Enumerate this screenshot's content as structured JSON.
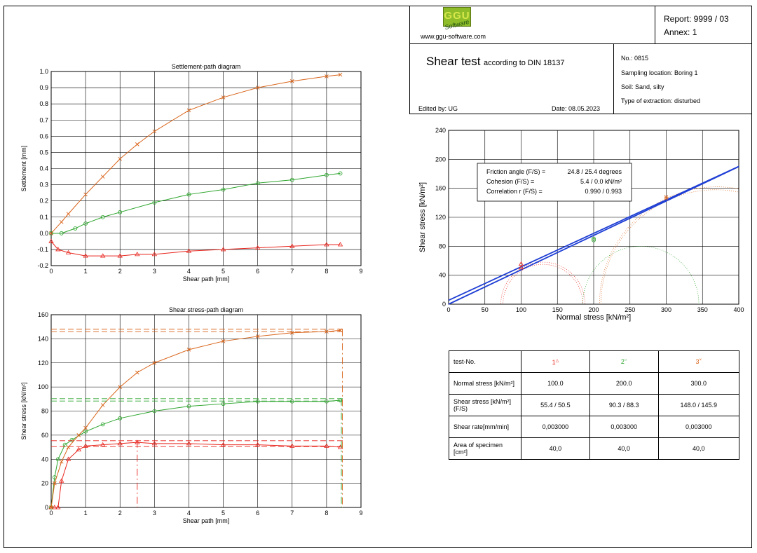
{
  "header": {
    "website": "www.ggu-software.com",
    "logo_main": "GGU",
    "logo_sub": "Software",
    "report": "Report: 9999 / 03",
    "annex": "Annex: 1",
    "title_main": "Shear test",
    "title_sub": "according to DIN 18137",
    "edited_by": "Edited by:  UG",
    "date": "Date:  08.05.2023",
    "no": "No.:  0815",
    "sampling_location": "Sampling location:  Boring 1",
    "soil": "Soil:  Sand, silty",
    "extraction": "Type of extraction:  disturbed"
  },
  "colors": {
    "test1": "#e8241c",
    "test2": "#2da52d",
    "test3": "#d9651b",
    "regression": "#1f3fd4",
    "grid": "#000000"
  },
  "results_box": {
    "rows": [
      {
        "label": "Friction angle (F/S) =",
        "value": "24.8 /  25.4 degrees"
      },
      {
        "label": "Cohesion (F/S) =",
        "value": "5.4 /  0.0 kN/m²"
      },
      {
        "label": "Correlation r (F/S) =",
        "value": "0.990 / 0.993"
      }
    ]
  },
  "table": {
    "headers": [
      "test-No.",
      "1",
      "2",
      "3"
    ],
    "markers": [
      "△",
      "○",
      "×"
    ],
    "rows": [
      {
        "label": "Normal stress [kN/m²]",
        "values": [
          "100.0",
          "200.0",
          "300.0"
        ]
      },
      {
        "label": "Shear stress [kN/m²](F/S)",
        "values": [
          "55.4 / 50.5",
          "90.3 / 88.3",
          "148.0 / 145.9"
        ]
      },
      {
        "label": "Shear rate[mm/min]",
        "values": [
          "0,003000",
          "0,003000",
          "0,003000"
        ]
      },
      {
        "label": "Area of specimen [cm²]",
        "values": [
          "40,0",
          "40,0",
          "40,0"
        ]
      }
    ]
  },
  "chart_data": [
    {
      "type": "line",
      "title": "Settlement-path diagram",
      "xlabel": "Shear path [mm]",
      "ylabel": "Settlement [mm]",
      "xlim": [
        0,
        9
      ],
      "ylim": [
        -0.2,
        1.0
      ],
      "xticks": [
        "0",
        "1",
        "2",
        "3",
        "4",
        "5",
        "6",
        "7",
        "8",
        "9"
      ],
      "yticks": [
        "-0.2",
        "-0.1",
        "0.0",
        "0.1",
        "0.2",
        "0.3",
        "0.4",
        "0.5",
        "0.6",
        "0.7",
        "0.8",
        "0.9",
        "1.0"
      ],
      "grid": true,
      "series": [
        {
          "marker": "△",
          "color": "#e8241c",
          "x": [
            0,
            0.2,
            0.5,
            1.0,
            1.5,
            2.0,
            2.5,
            3.0,
            4.0,
            5.0,
            6.0,
            7.0,
            8.0,
            8.4
          ],
          "y": [
            -0.05,
            -0.1,
            -0.12,
            -0.14,
            -0.14,
            -0.14,
            -0.13,
            -0.13,
            -0.11,
            -0.1,
            -0.09,
            -0.08,
            -0.07,
            -0.07
          ]
        },
        {
          "marker": "○",
          "color": "#2da52d",
          "x": [
            0,
            0.3,
            0.7,
            1.0,
            1.5,
            2.0,
            3.0,
            4.0,
            5.0,
            6.0,
            7.0,
            8.0,
            8.4
          ],
          "y": [
            0,
            0.0,
            0.03,
            0.06,
            0.1,
            0.13,
            0.19,
            0.24,
            0.27,
            0.31,
            0.33,
            0.36,
            0.37
          ]
        },
        {
          "marker": "×",
          "color": "#d9651b",
          "x": [
            0,
            0.3,
            0.5,
            1.0,
            1.5,
            2.0,
            2.5,
            3.0,
            4.0,
            5.0,
            6.0,
            7.0,
            8.0,
            8.4
          ],
          "y": [
            0,
            0.07,
            0.12,
            0.24,
            0.35,
            0.46,
            0.55,
            0.63,
            0.76,
            0.84,
            0.9,
            0.94,
            0.97,
            0.98
          ]
        }
      ]
    },
    {
      "type": "line",
      "title": "Shear stress-path diagram",
      "xlabel": "Shear path [mm]",
      "ylabel": "Shear stress [kN/m²]",
      "xlim": [
        0,
        9
      ],
      "ylim": [
        0,
        160
      ],
      "xticks": [
        "0",
        "1",
        "2",
        "3",
        "4",
        "5",
        "6",
        "7",
        "8",
        "9"
      ],
      "yticks": [
        "0",
        "20",
        "40",
        "60",
        "80",
        "100",
        "120",
        "140",
        "160"
      ],
      "grid": true,
      "peak_lines": [
        55.4,
        90.3,
        148.0
      ],
      "final_lines": [
        50.5,
        88.3,
        145.9
      ],
      "peak_x": [
        2.5,
        8.4,
        8.4
      ],
      "series": [
        {
          "marker": "△",
          "color": "#e8241c",
          "x": [
            0,
            0.1,
            0.2,
            0.3,
            0.5,
            0.8,
            1.0,
            1.5,
            2.0,
            2.5,
            3.0,
            4.0,
            5.0,
            6.0,
            7.0,
            8.0,
            8.4
          ],
          "y": [
            0,
            0,
            0,
            22,
            40,
            48,
            51,
            52,
            53,
            54,
            53,
            53,
            52,
            52,
            51,
            51,
            50
          ]
        },
        {
          "marker": "○",
          "color": "#2da52d",
          "x": [
            0,
            0.1,
            0.2,
            0.4,
            0.6,
            1.0,
            1.5,
            2.0,
            3.0,
            4.0,
            5.0,
            6.0,
            7.0,
            8.0,
            8.4
          ],
          "y": [
            0,
            25,
            40,
            52,
            56,
            63,
            69,
            74,
            80,
            84,
            86,
            88,
            88,
            88,
            89
          ]
        },
        {
          "marker": "×",
          "color": "#d9651b",
          "x": [
            0,
            0.1,
            0.3,
            0.5,
            0.8,
            1.0,
            1.5,
            2.0,
            2.5,
            3.0,
            4.0,
            5.0,
            6.0,
            7.0,
            8.0,
            8.4
          ],
          "y": [
            0,
            20,
            38,
            50,
            60,
            66,
            85,
            100,
            112,
            120,
            131,
            138,
            142,
            145,
            146,
            147
          ]
        }
      ]
    },
    {
      "type": "scatter",
      "title": "",
      "xlabel": "Normal stress [kN/m²]",
      "ylabel": "Shear stress [kN/m²]",
      "xlim": [
        0,
        400
      ],
      "ylim": [
        0,
        240
      ],
      "xticks": [
        "0",
        "50",
        "100",
        "150",
        "200",
        "250",
        "300",
        "350",
        "400"
      ],
      "yticks": [
        "0",
        "40",
        "80",
        "120",
        "160",
        "200",
        "240"
      ],
      "grid": true,
      "points": [
        {
          "marker": "△",
          "color": "#e8241c",
          "x": 100,
          "y": 55.4
        },
        {
          "marker": "△",
          "color": "#e8241c",
          "x": 100,
          "y": 50.5
        },
        {
          "marker": "○",
          "color": "#2da52d",
          "x": 200,
          "y": 90.3
        },
        {
          "marker": "○",
          "color": "#2da52d",
          "x": 200,
          "y": 88.3
        },
        {
          "marker": "×",
          "color": "#d9651b",
          "x": 300,
          "y": 148.0
        },
        {
          "marker": "×",
          "color": "#d9651b",
          "x": 300,
          "y": 145.9
        }
      ],
      "regression_lines": [
        {
          "phi_deg": 24.8,
          "c": 5.4
        },
        {
          "phi_deg": 25.4,
          "c": 0.0
        }
      ],
      "mohr_circles": [
        {
          "color": "#e8241c",
          "center": 130,
          "radius": 58
        },
        {
          "color": "#e8241c",
          "center": 130,
          "radius": 55
        },
        {
          "color": "#2da52d",
          "center": 265,
          "radius": 80
        },
        {
          "color": "#d9651b",
          "center": 370,
          "radius": 162
        },
        {
          "color": "#d9651b",
          "center": 368,
          "radius": 158
        }
      ]
    }
  ]
}
